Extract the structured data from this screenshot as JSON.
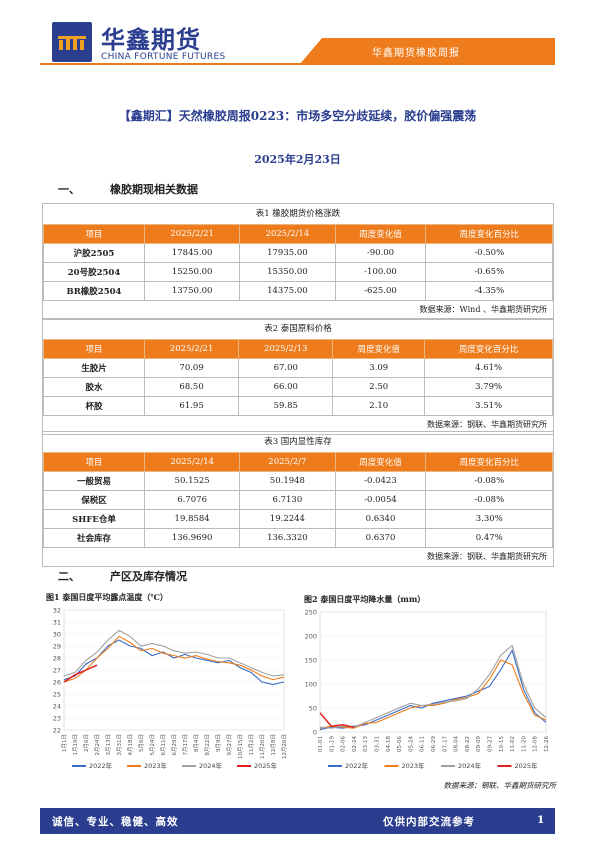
{
  "header": {
    "logo_cn": "华鑫期货",
    "logo_en": "CHINA FORTUNE FUTURES",
    "band_text": "华鑫期货橡胶周报"
  },
  "title": "【鑫期汇】天然橡胶周报0223：市场多空分歧延续，胶价偏强震荡",
  "date": "2025年2月23日",
  "section1": {
    "num": "一、",
    "title": "橡胶期现相关数据"
  },
  "table1": {
    "caption": "表1 橡胶期货价格涨跌",
    "headers": [
      "项目",
      "2025/2/21",
      "2025/2/14",
      "周度变化值",
      "周度变化百分比"
    ],
    "rows": [
      [
        "沪胶2505",
        "17845.00",
        "17935.00",
        "-90.00",
        "-0.50%"
      ],
      [
        "20号胶2504",
        "15250.00",
        "15350.00",
        "-100.00",
        "-0.65%"
      ],
      [
        "BR橡胶2504",
        "13750.00",
        "14375.00",
        "-625.00",
        "-4.35%"
      ]
    ],
    "source": "数据来源：Wind 、华鑫期货研究所"
  },
  "table2": {
    "caption": "表2 泰国原料价格",
    "headers": [
      "项目",
      "2025/2/21",
      "2025/2/13",
      "周度变化值",
      "周度变化百分比"
    ],
    "rows": [
      [
        "生胶片",
        "70.09",
        "67.00",
        "3.09",
        "4.61%"
      ],
      [
        "胶水",
        "68.50",
        "66.00",
        "2.50",
        "3.79%"
      ],
      [
        "杯胶",
        "61.95",
        "59.85",
        "2.10",
        "3.51%"
      ]
    ],
    "source": "数据来源：钢联、华鑫期货研究所"
  },
  "table3": {
    "caption": "表3 国内显性库存",
    "headers": [
      "项目",
      "2025/2/14",
      "2025/2/7",
      "周度变化值",
      "周度变化百分比"
    ],
    "rows": [
      [
        "一般贸易",
        "50.1525",
        "50.1948",
        "-0.0423",
        "-0.08%"
      ],
      [
        "保税区",
        "6.7076",
        "6.7130",
        "-0.0054",
        "-0.08%"
      ],
      [
        "SHFE仓单",
        "19.8584",
        "19.2244",
        "0.6340",
        "3.30%"
      ],
      [
        "社会库存",
        "136.9690",
        "136.3320",
        "0.6370",
        "0.47%"
      ]
    ],
    "source": "数据来源：钢联、华鑫期货研究所"
  },
  "section2": {
    "num": "二、",
    "title": "产区及库存情况"
  },
  "chart1": {
    "title": "图1 泰国日度平均露点温度（℃）",
    "chart_data": {
      "type": "line",
      "ylim": [
        22,
        32
      ],
      "yticks": [
        "32",
        "31",
        "30",
        "29",
        "28",
        "27",
        "26",
        "25",
        "24",
        "23",
        "22"
      ],
      "x": [
        "1月1日",
        "1月19日",
        "2月6日",
        "2月24日",
        "3月13日",
        "3月31日",
        "4月18日",
        "5月6日",
        "5月24日",
        "6月11日",
        "6月29日",
        "7月17日",
        "8月4日",
        "8月22日",
        "9月9日",
        "9月27日",
        "10月15日",
        "11月2日",
        "11月20日",
        "12月8日",
        "12月26日"
      ],
      "series": [
        {
          "name": "2022年",
          "color": "#3b6cc6",
          "values": [
            26.2,
            26.5,
            27.5,
            28.0,
            29.0,
            29.5,
            29.0,
            28.8,
            28.2,
            28.5,
            28.0,
            28.3,
            28.0,
            27.8,
            27.6,
            27.8,
            27.2,
            26.8,
            26.0,
            25.8,
            26.0
          ]
        },
        {
          "name": "2023年",
          "color": "#ee7c1c",
          "values": [
            26.0,
            26.3,
            27.0,
            28.0,
            28.8,
            29.8,
            29.3,
            28.6,
            28.8,
            28.4,
            28.2,
            28.0,
            28.2,
            27.9,
            27.7,
            27.6,
            27.4,
            27.0,
            26.5,
            26.2,
            26.4
          ]
        },
        {
          "name": "2024年",
          "color": "#a0a0a0",
          "values": [
            26.5,
            26.8,
            27.8,
            28.5,
            29.5,
            30.3,
            29.8,
            29.0,
            29.2,
            29.0,
            28.6,
            28.4,
            28.5,
            28.3,
            28.0,
            28.0,
            27.6,
            27.2,
            26.8,
            26.5,
            26.6
          ]
        },
        {
          "name": "2025年",
          "color": "#e02020",
          "values": [
            26.0,
            26.6,
            27.0,
            27.4,
            null,
            null,
            null,
            null,
            null,
            null,
            null,
            null,
            null,
            null,
            null,
            null,
            null,
            null,
            null,
            null,
            null
          ]
        }
      ]
    }
  },
  "chart2": {
    "title": "图2 泰国日度平均降水量（mm）",
    "chart_data": {
      "type": "line",
      "ylim": [
        0,
        250
      ],
      "yticks": [
        "250",
        "200",
        "150",
        "100",
        "50",
        "0"
      ],
      "x": [
        "01-01",
        "01-19",
        "02-06",
        "02-24",
        "03-13",
        "03-31",
        "04-18",
        "05-06",
        "05-24",
        "06-11",
        "06-29",
        "07-17",
        "08-04",
        "08-22",
        "09-09",
        "09-27",
        "10-15",
        "11-02",
        "11-20",
        "12-08",
        "12-26"
      ],
      "series": [
        {
          "name": "2022年",
          "color": "#3b6cc6",
          "values": [
            5,
            10,
            8,
            12,
            15,
            25,
            35,
            45,
            55,
            50,
            60,
            65,
            70,
            75,
            85,
            95,
            130,
            170,
            90,
            40,
            20
          ]
        },
        {
          "name": "2023年",
          "color": "#ee7c1c",
          "values": [
            8,
            12,
            10,
            8,
            18,
            20,
            30,
            40,
            50,
            55,
            55,
            60,
            68,
            72,
            80,
            110,
            150,
            140,
            80,
            35,
            25
          ]
        },
        {
          "name": "2024年",
          "color": "#a0a0a0",
          "values": [
            10,
            8,
            12,
            10,
            20,
            30,
            40,
            50,
            60,
            55,
            58,
            62,
            65,
            70,
            90,
            120,
            160,
            180,
            100,
            50,
            30
          ]
        },
        {
          "name": "2025年",
          "color": "#e02020",
          "values": [
            40,
            12,
            15,
            10,
            null,
            null,
            null,
            null,
            null,
            null,
            null,
            null,
            null,
            null,
            null,
            null,
            null,
            null,
            null,
            null,
            null
          ]
        }
      ]
    }
  },
  "chart_source": "数据来源：钢联、华鑫期货研究所",
  "footer": {
    "left": "诚信、专业、稳健、高效",
    "right": "仅供内部交流参考",
    "page": "1"
  }
}
